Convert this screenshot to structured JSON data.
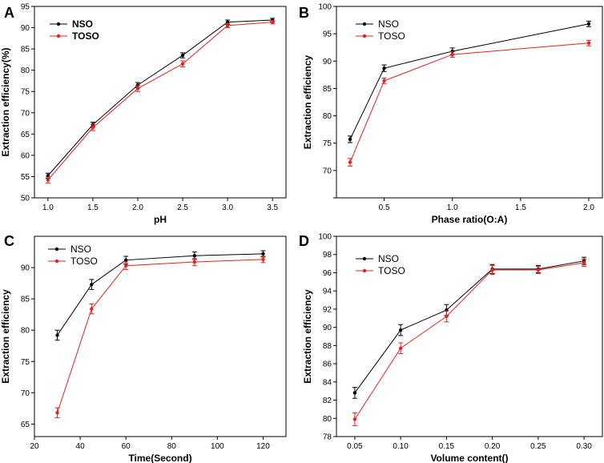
{
  "colors": {
    "nso": "#000000",
    "toso": "#e8201f"
  },
  "chart_data": [
    {
      "panel": "A",
      "type": "line",
      "xlabel": "pH",
      "ylabel": "Extraction efficiency(%)",
      "xlim": [
        0.85,
        3.65
      ],
      "ylim": [
        50,
        95
      ],
      "xticks": [
        1.0,
        1.5,
        2.0,
        2.5,
        3.0,
        3.5
      ],
      "xtick_labels": [
        "1.0",
        "1.5",
        "2.0",
        "2.5",
        "3.0",
        "3.5"
      ],
      "yticks": [
        50,
        55,
        60,
        65,
        70,
        75,
        80,
        85,
        90,
        95
      ],
      "ytick_labels": [
        "50",
        "55",
        "60",
        "65",
        "70",
        "75",
        "80",
        "85",
        "90",
        "95"
      ],
      "legend_bold": true,
      "legend": [
        "NSO",
        "TOSO"
      ],
      "series": [
        {
          "name": "NSO",
          "x": [
            1.0,
            1.5,
            2.0,
            2.5,
            3.0,
            3.5
          ],
          "values": [
            55.2,
            67.2,
            76.5,
            83.5,
            91.3,
            91.8
          ],
          "err": [
            0.6,
            0.6,
            0.6,
            0.6,
            0.5,
            0.4
          ]
        },
        {
          "name": "TOSO",
          "x": [
            1.0,
            1.5,
            2.0,
            2.5,
            3.0,
            3.5
          ],
          "values": [
            54.2,
            66.5,
            75.7,
            81.5,
            90.5,
            91.3
          ],
          "err": [
            0.7,
            0.7,
            0.7,
            0.7,
            0.5,
            0.4
          ]
        }
      ]
    },
    {
      "panel": "B",
      "type": "line",
      "xlabel": "Phase ratio(O:A)",
      "ylabel": "Extraction efficiency",
      "xlim": [
        0.15,
        2.1
      ],
      "ylim": [
        65,
        100
      ],
      "xticks": [
        0.5,
        1.0,
        1.5,
        2.0
      ],
      "xtick_labels": [
        "0.5",
        "1.0",
        "1.5",
        "2.0"
      ],
      "yticks": [
        65,
        70,
        75,
        80,
        85,
        90,
        95,
        100
      ],
      "ytick_labels": [
        "",
        "70",
        "75",
        "80",
        "85",
        "90",
        "95",
        "100"
      ],
      "legend_bold": false,
      "legend": [
        "NSO",
        "TOSO"
      ],
      "series": [
        {
          "name": "NSO",
          "x": [
            0.25,
            0.5,
            1.0,
            2.0
          ],
          "values": [
            75.7,
            88.7,
            91.8,
            96.8
          ],
          "err": [
            0.6,
            0.6,
            0.6,
            0.5
          ]
        },
        {
          "name": "TOSO",
          "x": [
            0.25,
            0.5,
            1.0,
            2.0
          ],
          "values": [
            71.5,
            86.4,
            91.2,
            93.3
          ],
          "err": [
            0.7,
            0.5,
            0.5,
            0.5
          ]
        }
      ]
    },
    {
      "panel": "C",
      "type": "line",
      "xlabel": "Time(Second)",
      "ylabel": "Extraction efficiency",
      "xlim": [
        20,
        130
      ],
      "ylim": [
        63,
        95
      ],
      "xticks": [
        20,
        40,
        60,
        80,
        100,
        120
      ],
      "xtick_labels": [
        "20",
        "40",
        "60",
        "80",
        "100",
        "120"
      ],
      "yticks": [
        65,
        70,
        75,
        80,
        85,
        90
      ],
      "ytick_labels": [
        "65",
        "70",
        "75",
        "80",
        "85",
        "90"
      ],
      "legend_bold": false,
      "legend": [
        "NSO",
        "TOSO"
      ],
      "series": [
        {
          "name": "NSO",
          "x": [
            30,
            45,
            60,
            90,
            120
          ],
          "values": [
            79.2,
            87.3,
            91.2,
            91.9,
            92.2
          ],
          "err": [
            0.8,
            0.8,
            0.6,
            0.6,
            0.5
          ]
        },
        {
          "name": "TOSO",
          "x": [
            30,
            45,
            60,
            90,
            120
          ],
          "values": [
            66.8,
            83.4,
            90.3,
            90.9,
            91.3
          ],
          "err": [
            0.8,
            0.8,
            0.6,
            0.6,
            0.5
          ]
        }
      ]
    },
    {
      "panel": "D",
      "type": "line",
      "xlabel": "Volume content()",
      "ylabel": "Extraction efficiency",
      "xlim": [
        0.03,
        0.32
      ],
      "ylim": [
        78,
        100
      ],
      "xticks": [
        0.05,
        0.1,
        0.15,
        0.2,
        0.25,
        0.3
      ],
      "xtick_labels": [
        "0.05",
        "0.10",
        "0.15",
        "0.20",
        "0.25",
        "0.30"
      ],
      "yticks": [
        78,
        80,
        82,
        84,
        86,
        88,
        90,
        92,
        94,
        96,
        98,
        100
      ],
      "ytick_labels": [
        "78",
        "80",
        "82",
        "84",
        "86",
        "88",
        "90",
        "92",
        "94",
        "96",
        "98",
        "100"
      ],
      "legend_bold": false,
      "legend": [
        "NSO",
        "TOSO"
      ],
      "series": [
        {
          "name": "NSO",
          "x": [
            0.05,
            0.1,
            0.15,
            0.2,
            0.25,
            0.3
          ],
          "values": [
            82.8,
            89.7,
            91.9,
            96.4,
            96.4,
            97.3
          ],
          "err": [
            0.6,
            0.6,
            0.6,
            0.5,
            0.4,
            0.4
          ]
        },
        {
          "name": "TOSO",
          "x": [
            0.05,
            0.1,
            0.15,
            0.2,
            0.25,
            0.3
          ],
          "values": [
            79.9,
            87.7,
            91.2,
            96.3,
            96.3,
            97.1
          ],
          "err": [
            0.7,
            0.6,
            0.6,
            0.5,
            0.4,
            0.4
          ]
        }
      ]
    }
  ]
}
